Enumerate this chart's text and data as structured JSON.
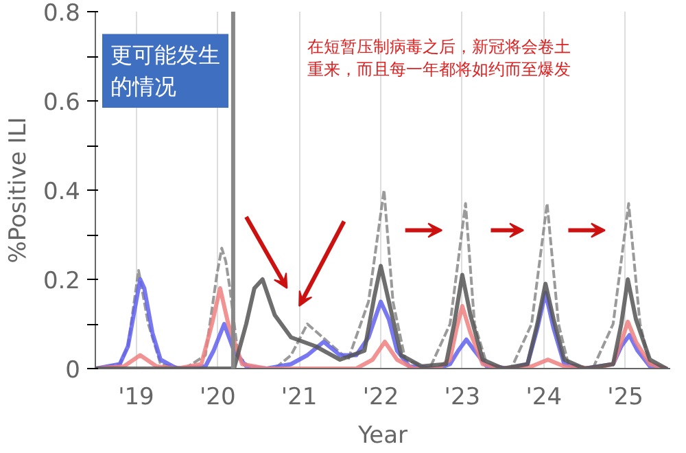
{
  "chart_data": {
    "type": "line",
    "xlabel": "Year",
    "ylabel": "%Positive ILI",
    "annotations": [
      "在短暂压制病毒之后，新冠将会卷土",
      "重来，而且每一年都将如约而至爆发",
      "更可能发生",
      "的情况"
    ],
    "xlim": [
      2018.5,
      2025.55
    ],
    "ylim": [
      0,
      0.8
    ],
    "xticks": [
      {
        "value": 2019,
        "label": "'19"
      },
      {
        "value": 2020,
        "label": "'20"
      },
      {
        "value": 2021,
        "label": "'21"
      },
      {
        "value": 2022,
        "label": "'22"
      },
      {
        "value": 2023,
        "label": "'23"
      },
      {
        "value": 2024,
        "label": "'24"
      },
      {
        "value": 2025,
        "label": "'25"
      }
    ],
    "yticks": [
      0.0,
      {
        "value": 0.1,
        "label": null
      },
      0.2,
      {
        "value": 0.3,
        "label": null
      },
      0.4,
      {
        "value": 0.5,
        "label": null
      },
      0.6,
      {
        "value": 0.7,
        "label": null
      },
      0.8
    ],
    "grid": "x",
    "ref_lines": [
      {
        "axis": "x",
        "value": 2020.19,
        "color": "#888888"
      }
    ],
    "series": [
      {
        "color": "#888888",
        "line_style": "dashed",
        "x": [
          2018.5,
          2018.8,
          2018.9,
          2019.03,
          2019.15,
          2019.3,
          2019.6,
          2019.85,
          2019.99,
          2020.05,
          2020.1,
          2020.15,
          2020.25,
          2020.4,
          2020.7,
          2020.9,
          2021.1,
          2021.35,
          2021.6,
          2021.85,
          2022.04,
          2022.15,
          2022.3,
          2022.6,
          2022.85,
          2023.04,
          2023.15,
          2023.3,
          2023.6,
          2023.85,
          2024.04,
          2024.18,
          2024.3,
          2024.6,
          2024.85,
          2025.04,
          2025.18,
          2025.3,
          2025.5
        ],
        "values": [
          0,
          0.01,
          0.05,
          0.22,
          0.1,
          0.01,
          0,
          0.03,
          0.21,
          0.27,
          0.24,
          0.18,
          0.03,
          0,
          0,
          0.03,
          0.1,
          0.06,
          0.02,
          0.15,
          0.4,
          0.15,
          0.02,
          0,
          0.1,
          0.37,
          0.1,
          0.01,
          0,
          0.1,
          0.37,
          0.1,
          0.01,
          0,
          0.1,
          0.37,
          0.1,
          0.01,
          0
        ]
      },
      {
        "color": "#6060ee",
        "x": [
          2018.5,
          2018.8,
          2018.9,
          2019.0,
          2019.05,
          2019.1,
          2019.2,
          2019.3,
          2019.5,
          2019.85,
          2019.95,
          2020.08,
          2020.2,
          2020.35,
          2020.6,
          2020.9,
          2021.1,
          2021.3,
          2021.5,
          2021.7,
          2021.85,
          2022.0,
          2022.1,
          2022.2,
          2022.35,
          2022.7,
          2022.85,
          2022.95,
          2023.05,
          2023.15,
          2023.3,
          2023.6,
          2023.8,
          2023.92,
          2024.02,
          2024.12,
          2024.25,
          2024.5,
          2024.85,
          2024.95,
          2025.05,
          2025.15,
          2025.3,
          2025.5
        ],
        "values": [
          0,
          0.01,
          0.05,
          0.15,
          0.2,
          0.18,
          0.08,
          0.02,
          0,
          0.005,
          0.04,
          0.1,
          0.04,
          0.005,
          0,
          0.01,
          0.03,
          0.06,
          0.03,
          0.03,
          0.07,
          0.15,
          0.11,
          0.04,
          0.005,
          0,
          0.01,
          0.04,
          0.065,
          0.04,
          0.005,
          0,
          0.01,
          0.09,
          0.17,
          0.09,
          0.01,
          0,
          0.01,
          0.05,
          0.075,
          0.04,
          0.005,
          0
        ]
      },
      {
        "color": "#f08080",
        "x": [
          2018.5,
          2018.85,
          2019.05,
          2019.25,
          2019.5,
          2019.8,
          2019.93,
          2020.03,
          2020.13,
          2020.3,
          2020.6,
          2021.7,
          2021.9,
          2022.05,
          2022.2,
          2022.4,
          2022.7,
          2022.85,
          2022.93,
          2023.0,
          2023.1,
          2023.25,
          2023.5,
          2023.85,
          2024.05,
          2024.25,
          2024.6,
          2024.85,
          2024.95,
          2025.03,
          2025.13,
          2025.3,
          2025.5
        ],
        "values": [
          0,
          0.005,
          0.03,
          0.005,
          0,
          0.01,
          0.1,
          0.18,
          0.1,
          0.01,
          0,
          0,
          0.02,
          0.06,
          0.02,
          0,
          0,
          0.02,
          0.09,
          0.14,
          0.08,
          0.01,
          0,
          0.005,
          0.02,
          0.005,
          0,
          0.01,
          0.06,
          0.105,
          0.06,
          0.01,
          0
        ]
      },
      {
        "color": "#555555",
        "x": [
          2018.5,
          2020.2,
          2020.35,
          2020.45,
          2020.55,
          2020.7,
          2020.9,
          2021.2,
          2021.5,
          2021.8,
          2021.92,
          2022.0,
          2022.1,
          2022.25,
          2022.5,
          2022.8,
          2022.9,
          2023.0,
          2023.1,
          2023.25,
          2023.5,
          2023.8,
          2023.92,
          2024.02,
          2024.12,
          2024.25,
          2024.5,
          2024.85,
          2024.95,
          2025.03,
          2025.13,
          2025.3,
          2025.5
        ],
        "values": [
          0,
          0,
          0.1,
          0.18,
          0.2,
          0.12,
          0.07,
          0.05,
          0.02,
          0.04,
          0.16,
          0.23,
          0.15,
          0.03,
          0.005,
          0.01,
          0.1,
          0.21,
          0.12,
          0.02,
          0,
          0.01,
          0.1,
          0.19,
          0.11,
          0.02,
          0,
          0.01,
          0.1,
          0.2,
          0.11,
          0.02,
          0
        ]
      }
    ]
  }
}
